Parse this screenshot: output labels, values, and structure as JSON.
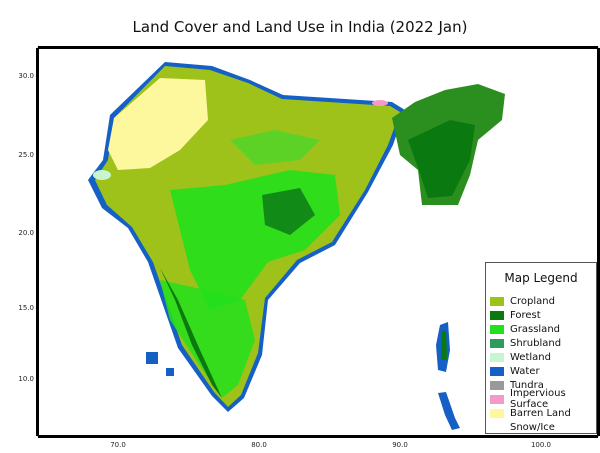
{
  "title": "Land Cover and Land Use in India (2022 Jan)",
  "axes": {
    "x_ticks": [
      "70.0",
      "80.0",
      "90.0",
      "100.0"
    ],
    "y_ticks": [
      "30.0",
      "25.0",
      "20.0",
      "15.0",
      "10.0"
    ]
  },
  "legend": {
    "title": "Map Legend",
    "items": [
      {
        "label": "Cropland",
        "color": "#9ec21a"
      },
      {
        "label": "Forest",
        "color": "#0a7a10"
      },
      {
        "label": "Grassland",
        "color": "#22e01c"
      },
      {
        "label": "Shrubland",
        "color": "#2e9a5c"
      },
      {
        "label": "Wetland",
        "color": "#c8f5d0"
      },
      {
        "label": "Water",
        "color": "#1560c4"
      },
      {
        "label": "Tundra",
        "color": "#999999"
      },
      {
        "label": "Impervious Surface",
        "color": "#f39ac8"
      },
      {
        "label": "Barren Land",
        "color": "#fdf79e"
      },
      {
        "label": "Snow/Ice",
        "color": "#ffffff"
      }
    ]
  }
}
